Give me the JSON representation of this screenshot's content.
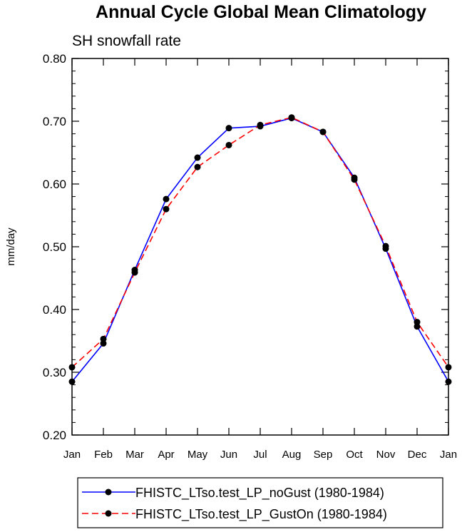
{
  "chart_data": {
    "type": "line",
    "title": "Annual Cycle Global Mean Climatology",
    "subtitle": "SH snowfall rate",
    "xlabel": "",
    "ylabel": "mm/day",
    "categories": [
      "Jan",
      "Feb",
      "Mar",
      "Apr",
      "May",
      "Jun",
      "Jul",
      "Aug",
      "Sep",
      "Oct",
      "Nov",
      "Dec",
      "Jan"
    ],
    "ylim": [
      0.2,
      0.8
    ],
    "y_ticks": [
      "0.20",
      "0.30",
      "0.40",
      "0.50",
      "0.60",
      "0.70",
      "0.80"
    ],
    "legend_position": "bottom",
    "series": [
      {
        "name": "FHISTC_LTso.test_LP_noGust (1980-1984)",
        "color": "#0000ff",
        "dash": "solid",
        "marker": "filled-circle",
        "values": [
          0.285,
          0.346,
          0.463,
          0.576,
          0.642,
          0.689,
          0.692,
          0.705,
          0.683,
          0.61,
          0.497,
          0.373,
          0.285
        ]
      },
      {
        "name": "FHISTC_LTso.test_LP_GustOn (1980-1984)",
        "color": "#ff0000",
        "dash": "dashed",
        "marker": "filled-circle",
        "values": [
          0.308,
          0.353,
          0.459,
          0.56,
          0.627,
          0.662,
          0.694,
          0.706,
          0.683,
          0.607,
          0.501,
          0.38,
          0.308
        ]
      }
    ]
  }
}
